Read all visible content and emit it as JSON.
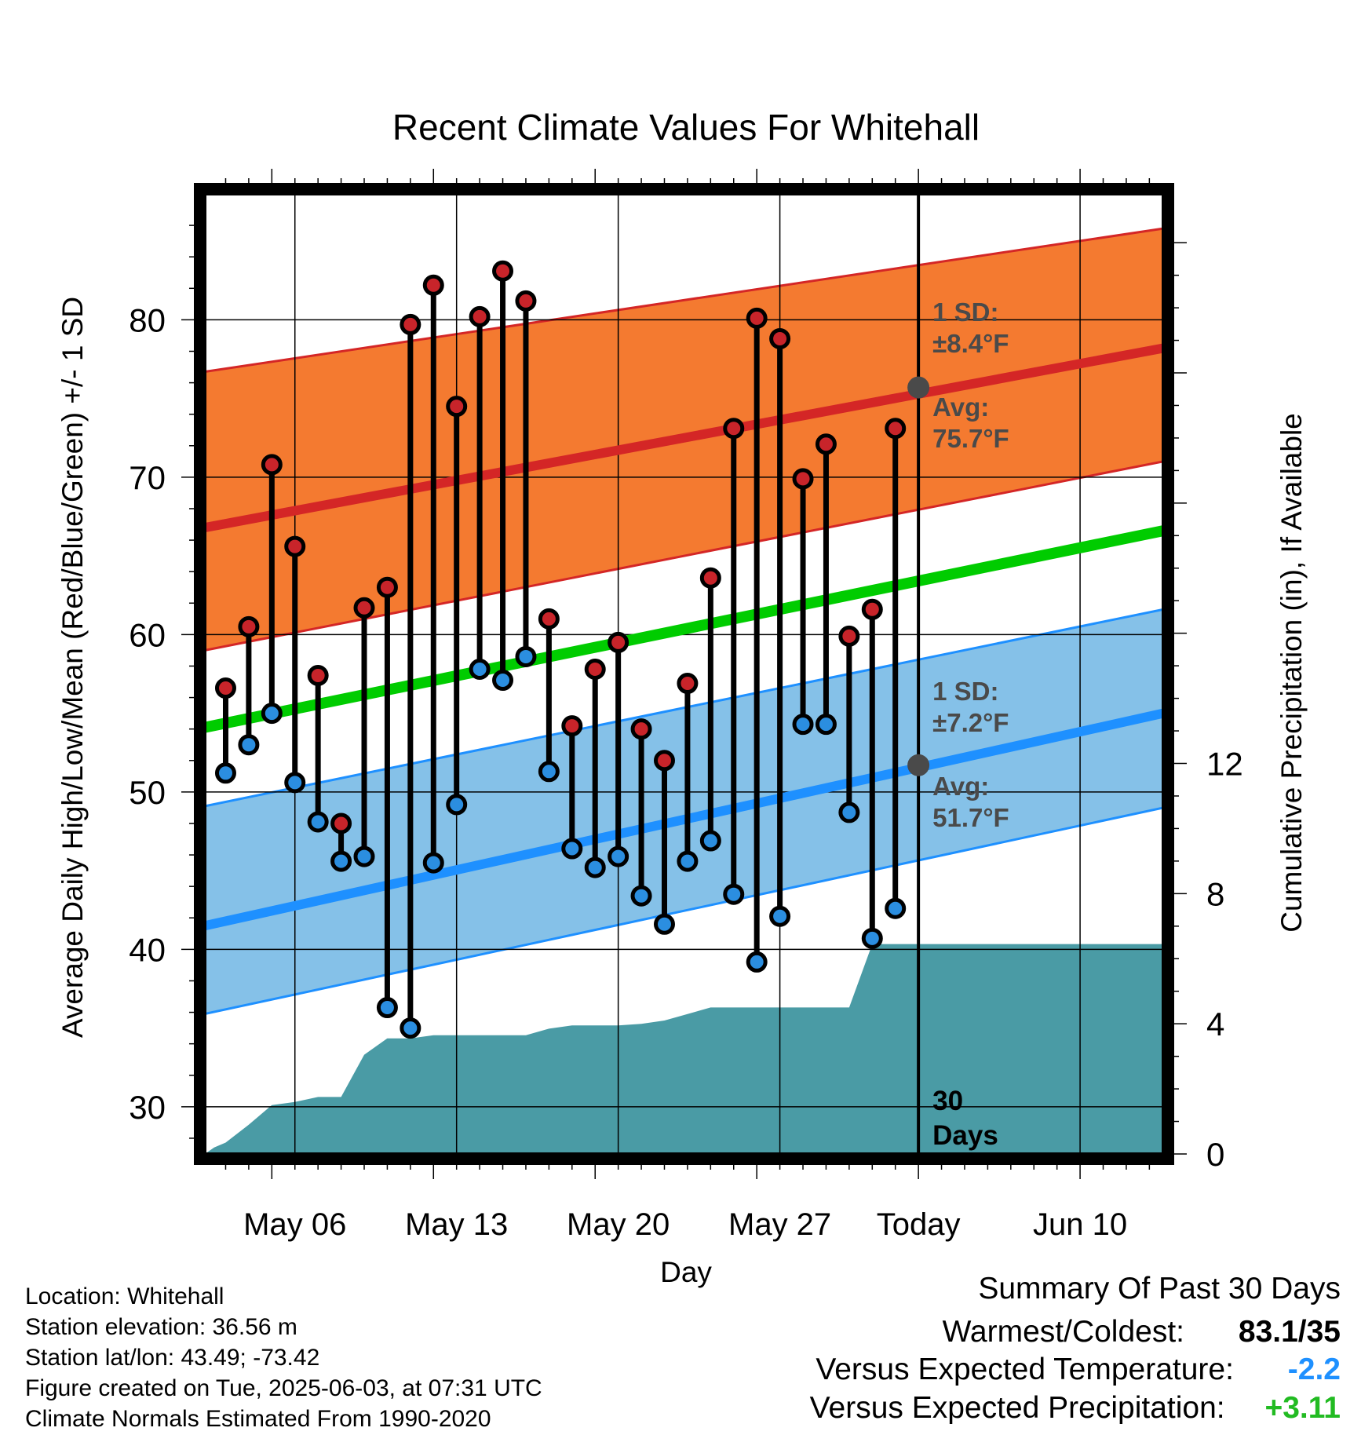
{
  "chart_data": {
    "type": "line",
    "title": "Recent Climate Values For Whitehall",
    "xlabel": "Day",
    "ylabel": "Average Daily High/Low/Mean (Red/Blue/Green) +/- 1 SD",
    "y2label": "Cumulative Precipitation (in), If Available",
    "ylim": [
      27,
      88
    ],
    "y2lim": [
      0,
      29.5
    ],
    "x_range_days": [
      -30.9,
      10.6
    ],
    "x_ticks": [
      {
        "day": -27,
        "label": "May 06"
      },
      {
        "day": -20,
        "label": "May 13"
      },
      {
        "day": -13,
        "label": "May 20"
      },
      {
        "day": -6,
        "label": "May 27"
      },
      {
        "day": 0,
        "label": "Today"
      },
      {
        "day": 7,
        "label": "Jun 10"
      }
    ],
    "y_ticks": [
      30,
      40,
      50,
      60,
      70,
      80
    ],
    "y2_ticks": [
      0,
      4,
      8,
      12
    ],
    "normals": {
      "high_avg": {
        "start": 66.8,
        "end": 78.2
      },
      "high_band": {
        "low_start": 59.0,
        "low_end": 71.0,
        "high_start": 76.7,
        "high_end": 85.8
      },
      "low_avg": {
        "start": 41.5,
        "end": 55.0
      },
      "low_band": {
        "low_start": 35.9,
        "low_end": 49.0,
        "high_start": 49.1,
        "high_end": 61.6
      },
      "mean_avg": {
        "start": 54.1,
        "end": 66.6
      }
    },
    "daily_high": [
      56.6,
      60.5,
      70.8,
      65.6,
      57.4,
      48.0,
      61.7,
      63.0,
      79.7,
      82.2,
      74.5,
      80.2,
      83.1,
      81.2,
      61.0,
      54.2,
      57.8,
      59.5,
      54.0,
      52.0,
      56.9,
      63.6,
      73.1,
      80.1,
      78.8,
      69.9,
      72.1,
      59.9,
      61.6,
      73.1
    ],
    "daily_low": [
      51.2,
      53.0,
      55.0,
      50.6,
      48.1,
      45.6,
      45.9,
      36.3,
      35.0,
      45.5,
      49.2,
      57.8,
      57.1,
      58.6,
      51.3,
      46.4,
      45.2,
      45.9,
      43.4,
      41.6,
      45.6,
      46.9,
      43.5,
      39.2,
      42.1,
      54.3,
      54.3,
      48.7,
      40.7,
      42.6
    ],
    "precip": {
      "label": "Cumulative precipitation",
      "x": [
        -30.9,
        -30.5,
        -30.0,
        -29.0,
        -28.0,
        -27.0,
        -26.0,
        -25.0,
        -24.0,
        -23.0,
        -22.0,
        -21.0,
        -20.0,
        -19.0,
        -18.0,
        -17.0,
        -16.0,
        -15.0,
        -14.0,
        -13.0,
        -12.0,
        -11.0,
        -10.0,
        -9.0,
        -8.0,
        -7.0,
        -6.0,
        -5.0,
        -4.0,
        -3.0,
        -2.0,
        -1.0,
        0.0,
        10.6
      ],
      "y": [
        0.0,
        0.2,
        0.35,
        0.9,
        1.5,
        1.6,
        1.75,
        1.75,
        3.05,
        3.55,
        3.55,
        3.65,
        3.65,
        3.65,
        3.65,
        3.65,
        3.85,
        3.95,
        3.95,
        3.95,
        4.0,
        4.1,
        4.3,
        4.5,
        4.5,
        4.5,
        4.5,
        4.5,
        4.5,
        4.5,
        6.45,
        6.45,
        6.45,
        6.45
      ]
    },
    "today_line": {
      "day": 0,
      "label_line1": "30",
      "label_line2": "Days"
    },
    "annotations": {
      "high_sd_line1": "1 SD:",
      "high_sd_line2": "±8.4°F",
      "high_avg_line1": "Avg:",
      "high_avg_line2": "75.7°F",
      "high_avg_value": 75.7,
      "low_sd_line1": "1 SD:",
      "low_sd_line2": "±7.2°F",
      "low_avg_line1": "Avg:",
      "low_avg_line2": "51.7°F",
      "low_avg_value": 51.7
    },
    "colors": {
      "high_band": "#f47a30",
      "high_line": "#d42626",
      "low_band": "#85c1e8",
      "low_line": "#1e90ff",
      "mean_line": "#00cc00",
      "precip": "#4a9ba5",
      "high_dot": "#c8242a",
      "low_dot": "#2b8ee0",
      "annotation_text": "#4a4a4a"
    }
  },
  "station": {
    "location": "Location: Whitehall",
    "elevation": "Station elevation: 36.56 m",
    "latlon": "Station lat/lon: 43.49; -73.42",
    "created": "Figure created on Tue, 2025-06-03, at 07:31 UTC",
    "normals": "Climate Normals Estimated From 1990-2020"
  },
  "summary": {
    "title": "Summary Of Past 30 Days",
    "warm_cold_label": "Warmest/Coldest:",
    "warm_cold_value": "83.1/35",
    "temp_label": "Versus Expected Temperature:",
    "temp_value": "-2.2",
    "temp_color": "#1e90ff",
    "precip_label": "Versus Expected Precipitation:",
    "precip_value": "+3.11",
    "precip_color": "#22bb22"
  }
}
